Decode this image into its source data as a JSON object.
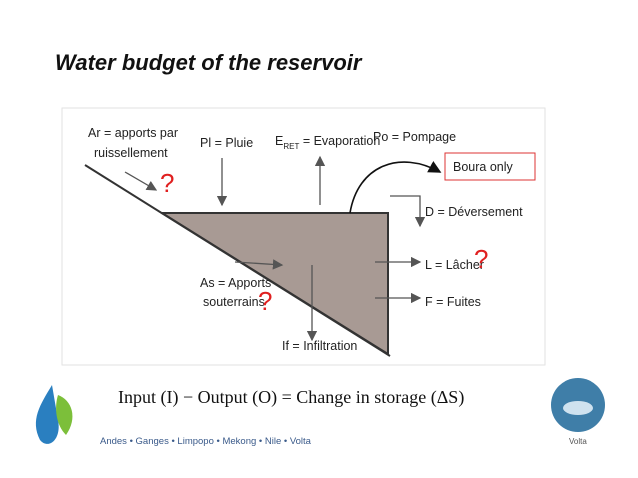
{
  "title": "Water budget of the reservoir",
  "diagram": {
    "labels": {
      "ar_line1": "Ar = apports par",
      "ar_line2": "ruissellement",
      "ar_question": "?",
      "pl": "Pl = Pluie",
      "e_prefix": "E",
      "e_subscript": "RET",
      "e_rest": " = Evaporation",
      "po": "Po = Pompage",
      "boura": "Boura only",
      "d": "D = Déversement",
      "l": "L = Lâcher",
      "l_question": "?",
      "f": "F = Fuites",
      "as_line1": "As = Apports",
      "as_line2": "souterrains",
      "as_question": "?",
      "if": "If = Infiltration"
    }
  },
  "equation": "Input (I) − Output (O) = Change in storage (ΔS)",
  "footer": {
    "basins": "Andes • Ganges • Limpopo • Mekong • Nile • Volta",
    "basin_name": "Volta"
  }
}
